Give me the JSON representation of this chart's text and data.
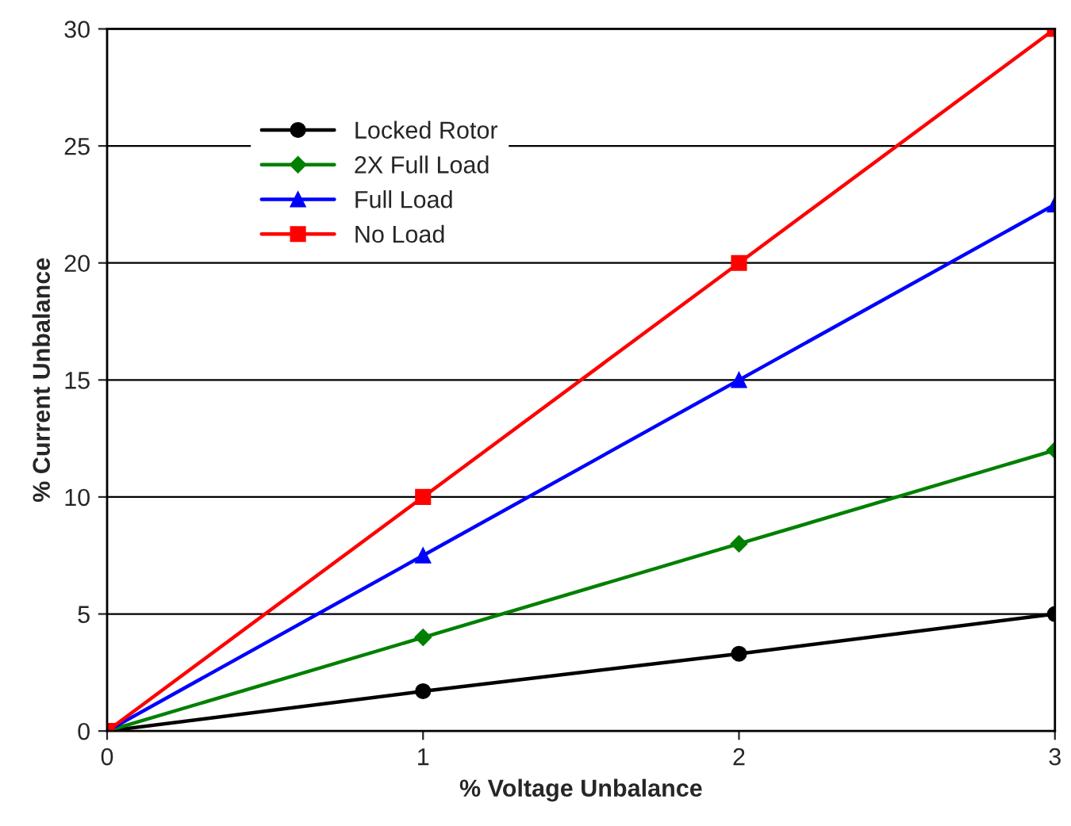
{
  "chart_data": {
    "type": "line",
    "xlabel": "% Voltage Unbalance",
    "ylabel": "% Current Unbalance",
    "x": [
      0,
      1,
      2,
      3
    ],
    "series": [
      {
        "name": "Locked Rotor",
        "color": "#000000",
        "marker": "circle",
        "values": [
          0,
          1.7,
          3.3,
          5
        ]
      },
      {
        "name": "2X Full Load",
        "color": "#008000",
        "marker": "diamond",
        "values": [
          0,
          4,
          8,
          12
        ]
      },
      {
        "name": "Full Load",
        "color": "#0000ff",
        "marker": "triangle",
        "values": [
          0,
          7.5,
          15,
          22.5
        ]
      },
      {
        "name": "No Load",
        "color": "#ff0000",
        "marker": "square",
        "values": [
          0,
          10,
          20,
          30
        ]
      }
    ],
    "xlim": [
      0,
      3
    ],
    "ylim": [
      0,
      30
    ],
    "xticks": [
      0,
      1,
      2,
      3
    ],
    "yticks": [
      0,
      5,
      10,
      15,
      20,
      25,
      30
    ],
    "grid": "y",
    "legend": "top left",
    "line_style": "solid"
  }
}
